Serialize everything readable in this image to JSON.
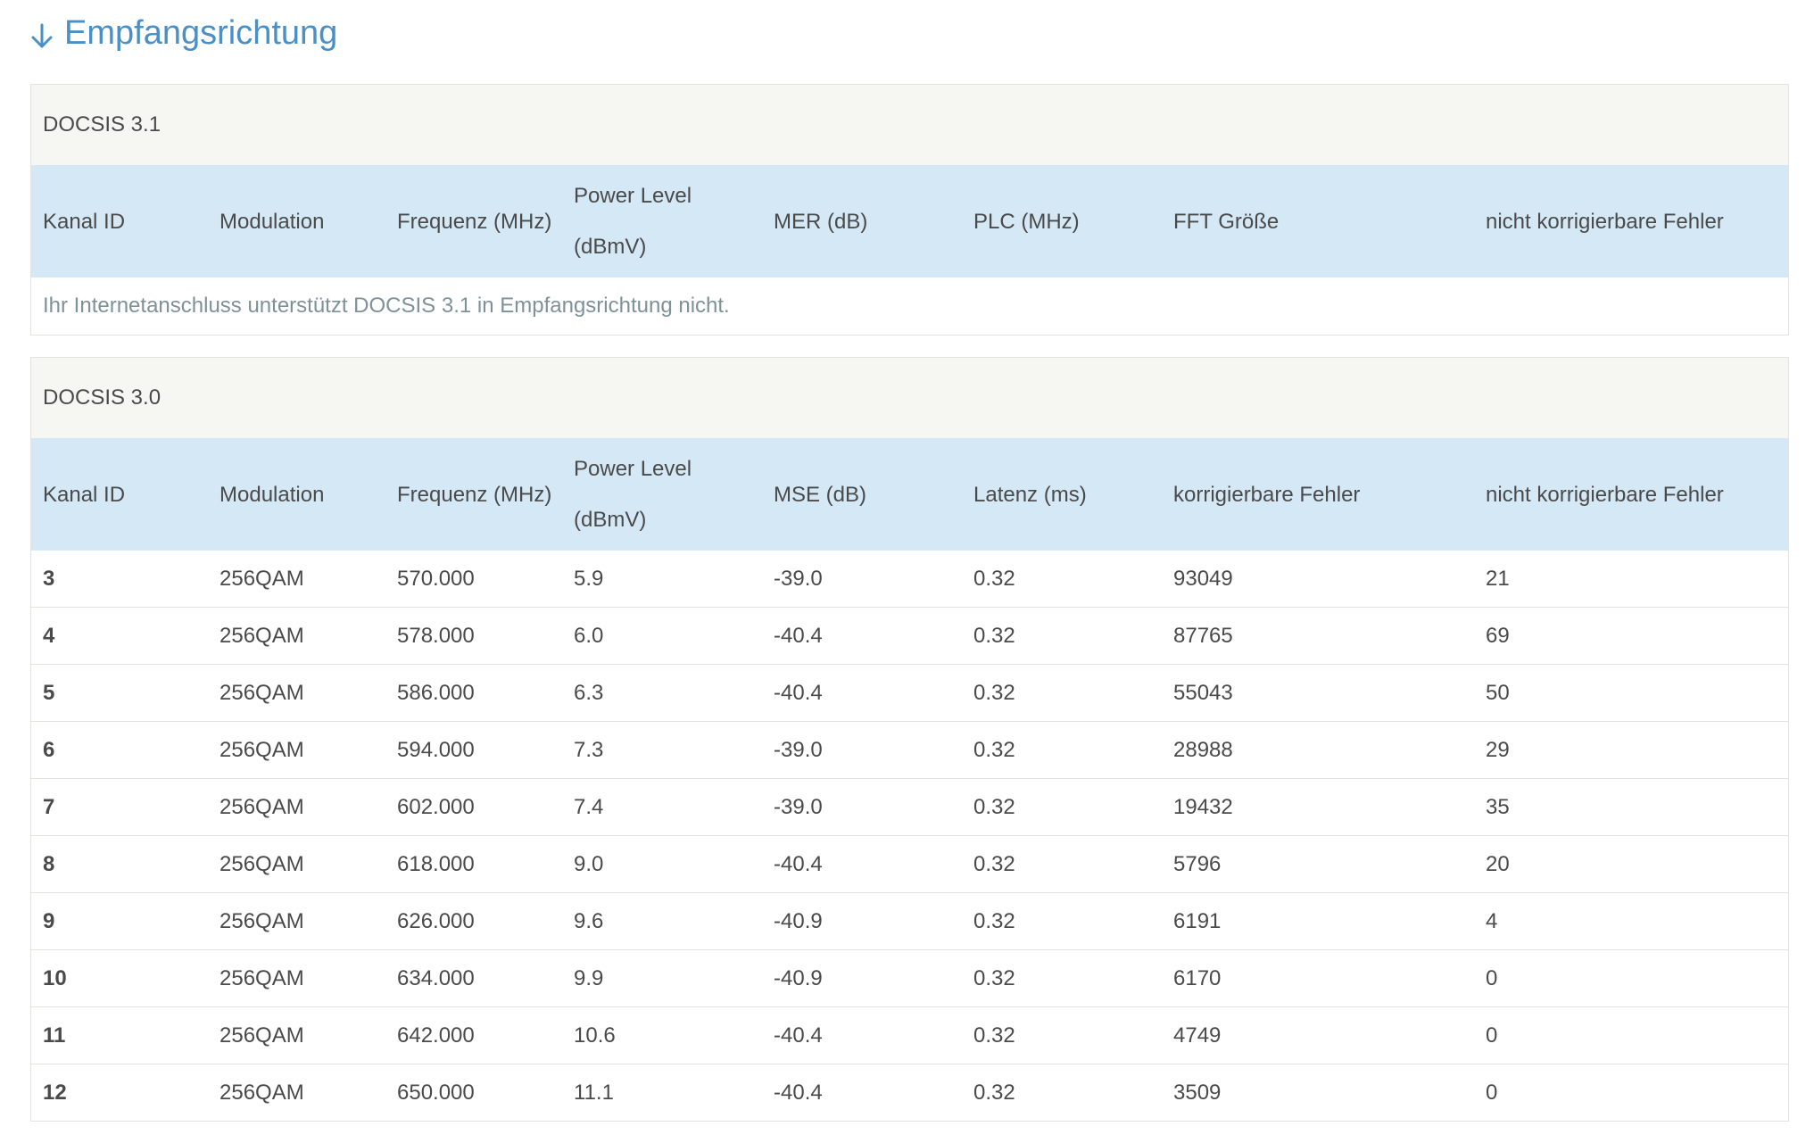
{
  "heading": {
    "title": "Empfangsrichtung",
    "icon": "arrow-down-icon",
    "color": "#4a8fc6"
  },
  "docsis31": {
    "title": "DOCSIS 3.1",
    "columns": [
      "Kanal ID",
      "Modulation",
      "Frequenz (MHz)",
      "Power Level (dBmV)",
      "MER (dB)",
      "PLC (MHz)",
      "FFT Größe",
      "nicht korrigierbare Fehler"
    ],
    "message": "Ihr Internetanschluss unterstützt DOCSIS 3.1 in Empfangsrichtung nicht."
  },
  "docsis30": {
    "title": "DOCSIS 3.0",
    "columns": [
      "Kanal ID",
      "Modulation",
      "Frequenz (MHz)",
      "Power Level (dBmV)",
      "MSE (dB)",
      "Latenz (ms)",
      "korrigierbare Fehler",
      "nicht korrigierbare Fehler"
    ],
    "rows": [
      [
        "3",
        "256QAM",
        "570.000",
        "5.9",
        "-39.0",
        "0.32",
        "93049",
        "21"
      ],
      [
        "4",
        "256QAM",
        "578.000",
        "6.0",
        "-40.4",
        "0.32",
        "87765",
        "69"
      ],
      [
        "5",
        "256QAM",
        "586.000",
        "6.3",
        "-40.4",
        "0.32",
        "55043",
        "50"
      ],
      [
        "6",
        "256QAM",
        "594.000",
        "7.3",
        "-39.0",
        "0.32",
        "28988",
        "29"
      ],
      [
        "7",
        "256QAM",
        "602.000",
        "7.4",
        "-39.0",
        "0.32",
        "19432",
        "35"
      ],
      [
        "8",
        "256QAM",
        "618.000",
        "9.0",
        "-40.4",
        "0.32",
        "5796",
        "20"
      ],
      [
        "9",
        "256QAM",
        "626.000",
        "9.6",
        "-40.9",
        "0.32",
        "6191",
        "4"
      ],
      [
        "10",
        "256QAM",
        "634.000",
        "9.9",
        "-40.9",
        "0.32",
        "6170",
        "0"
      ],
      [
        "11",
        "256QAM",
        "642.000",
        "10.6",
        "-40.4",
        "0.32",
        "4749",
        "0"
      ],
      [
        "12",
        "256QAM",
        "650.000",
        "11.1",
        "-40.4",
        "0.32",
        "3509",
        "0"
      ]
    ]
  }
}
